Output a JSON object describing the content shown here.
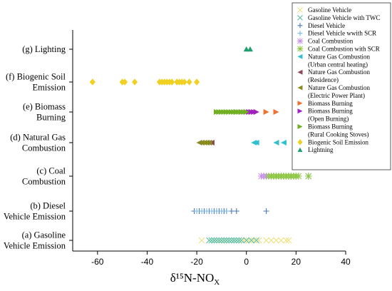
{
  "chart_data": {
    "type": "scatter",
    "xlabel": "δ¹⁵N-NO",
    "xlabel_sub": "X",
    "xlim": [
      -70,
      40
    ],
    "x_ticks": [
      -60,
      -40,
      -20,
      0,
      20,
      40
    ],
    "x_tick_labels": [
      "-60",
      "-40",
      "-20",
      "0",
      "20",
      "40"
    ],
    "categories": [
      [
        "(g) Lighting"
      ],
      [
        "(f) Biogenic Soil",
        "Emission"
      ],
      [
        "(e) Biomass",
        "Burning"
      ],
      [
        "(d) Natural Gas",
        "Combustion"
      ],
      [
        "(c) Coal",
        "Combustion"
      ],
      [
        "(b) Diesel",
        "Vehicle Emission"
      ],
      [
        "(a) Gasoline",
        "Vehicle Emission"
      ]
    ],
    "legend_position": "top-right",
    "series": [
      {
        "name": "Gasoline Vehicle",
        "lines": [
          "Gasoline Vehicle"
        ],
        "marker": "x",
        "color": "#f0e080",
        "category": 6,
        "x": [
          -18,
          -13,
          -10,
          -8,
          -5,
          -3,
          -1,
          1,
          3,
          5,
          8,
          10,
          12,
          14,
          16,
          17
        ]
      },
      {
        "name": "Gasoline Vehicle with TWC",
        "lines": [
          "Gasoline Vehicle with TWC"
        ],
        "marker": "x",
        "color": "#5cbfa0",
        "category": 6,
        "x": [
          -15,
          -14,
          -13,
          -12,
          -11,
          -10,
          -9,
          -8,
          -7,
          -6,
          -5,
          -4,
          -3,
          -2,
          0,
          2,
          4
        ]
      },
      {
        "name": "Diesel Vehicle",
        "lines": [
          "Diesel Vehicle"
        ],
        "marker": "plus",
        "color": "#4a78b8",
        "category": 5,
        "x": [
          -21,
          -19,
          -17,
          -15,
          -13,
          -12,
          -11,
          -10,
          -9,
          -8,
          -6,
          -4,
          8
        ]
      },
      {
        "name": "Diesel Vehicle wwith SCR",
        "lines": [
          "Diesel Vehicle wwith SCR"
        ],
        "marker": "plus",
        "color": "#7ab8e0",
        "category": 5,
        "x": [
          -20,
          -18,
          -16,
          -14,
          -12,
          -10,
          -8
        ]
      },
      {
        "name": "Coal Combustion",
        "lines": [
          "Coal Combustion"
        ],
        "marker": "star",
        "color": "#c890e8",
        "category": 4,
        "x": [
          6,
          7,
          8,
          10,
          12,
          14,
          16,
          18,
          20,
          25
        ]
      },
      {
        "name": "Coal Combustion with SCR",
        "lines": [
          "Coal Combustion with SCR"
        ],
        "marker": "star",
        "color": "#8cc840",
        "category": 4,
        "x": [
          9,
          10,
          11,
          12,
          13,
          14,
          15,
          16,
          17,
          18,
          19,
          20,
          21,
          25
        ]
      },
      {
        "name": "Nature Gas Combustion (Urban central heating)",
        "lines": [
          "Nature Gas Combustion",
          "(Urban central heating)"
        ],
        "marker": "tri-left",
        "color": "#30c0d0",
        "category": 3,
        "x": [
          3,
          4,
          12,
          15
        ]
      },
      {
        "name": "Nature Gas Combustion (Residence)",
        "lines": [
          "Nature Gas Combustion",
          "(Residence)"
        ],
        "marker": "tri-left",
        "color": "#8c4a58",
        "category": 3,
        "x": [
          -16,
          -15,
          -14
        ]
      },
      {
        "name": "Nature Gas Combustion (Electric Power Plant)",
        "lines": [
          "Nature Gas Combustion",
          "(Electric Power Plant)"
        ],
        "marker": "tri-left",
        "color": "#8a8a20",
        "category": 3,
        "x": [
          -19,
          -18,
          -17,
          -16,
          -15
        ]
      },
      {
        "name": "Biomass Burning",
        "lines": [
          "Biomass Burning"
        ],
        "marker": "tri-right",
        "color": "#f07030",
        "category": 2,
        "x": [
          2,
          4,
          8,
          12
        ]
      },
      {
        "name": "Biomass Burning (Open Burning)",
        "lines": [
          "Biomass Burning",
          "(Open Burning)"
        ],
        "marker": "tri-right",
        "color": "#a020c0",
        "category": 2,
        "x": [
          -4,
          -2,
          0,
          1,
          2,
          3,
          4
        ]
      },
      {
        "name": "Biomass Burning (Rural Cooking Stoves)",
        "lines": [
          "Biomass Burning",
          "(Rural Cooking Stoves)"
        ],
        "marker": "tri-right",
        "color": "#70b020",
        "category": 2,
        "x": [
          -12,
          -11,
          -10,
          -9,
          -8,
          -7,
          -6,
          -5,
          -4,
          -3,
          -2,
          -1,
          0
        ]
      },
      {
        "name": "Biogenic Soil Emission",
        "lines": [
          "Biogenic Soil Emission"
        ],
        "marker": "diamond",
        "color": "#f0d020",
        "category": 1,
        "x": [
          -62,
          -50,
          -49,
          -45,
          -35,
          -34,
          -33,
          -32,
          -31,
          -30,
          -28,
          -27,
          -26,
          -25,
          -23,
          -20
        ]
      },
      {
        "name": "Lightning",
        "lines": [
          "Lightning"
        ],
        "marker": "tri-up",
        "color": "#20a070",
        "category": 0,
        "x": [
          0,
          1.5
        ]
      }
    ]
  }
}
